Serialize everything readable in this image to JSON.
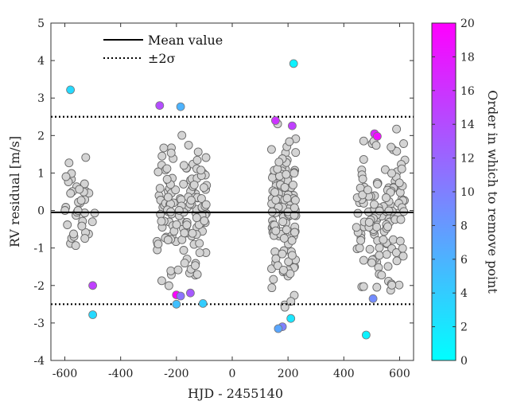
{
  "chart_data": {
    "type": "scatter",
    "title": "",
    "xlabel": "HJD - 2455140",
    "ylabel": "RV residual [m/s]",
    "xlim": [
      -650,
      650
    ],
    "ylim": [
      -4,
      5
    ],
    "xticks": [
      -600,
      -400,
      -200,
      0,
      200,
      400,
      600
    ],
    "yticks": [
      -4,
      -3,
      -2,
      -1,
      0,
      1,
      2,
      3,
      4,
      5
    ],
    "mean_value": -0.05,
    "sigma_lines": [
      2.5,
      -2.5
    ],
    "legend": {
      "placement": "top-left",
      "entries": [
        {
          "label": "Mean value",
          "style": "solid"
        },
        {
          "label": "±2σ",
          "style": "dotted"
        }
      ]
    },
    "colorbar": {
      "label": "Order in which to remove point",
      "min": 0,
      "max": 20,
      "ticks": [
        0,
        2,
        4,
        6,
        8,
        10,
        12,
        14,
        16,
        18,
        20
      ],
      "color_low": "#00ffff",
      "color_high": "#ff00ff"
    },
    "gray_color": "#d4d4d4",
    "clusters": [
      {
        "name": "cluster-1",
        "x_range": [
          -610,
          -490
        ],
        "count": 40,
        "y_range": [
          -1.7,
          1.7
        ]
      },
      {
        "name": "cluster-2",
        "x_range": [
          -270,
          -90
        ],
        "count": 140,
        "y_range": [
          -2.3,
          2.3
        ]
      },
      {
        "name": "cluster-3",
        "x_range": [
          140,
          230
        ],
        "count": 130,
        "y_range": [
          -2.6,
          2.8
        ]
      },
      {
        "name": "cluster-4",
        "x_range": [
          440,
          620
        ],
        "count": 130,
        "y_range": [
          -2.7,
          2.6
        ]
      }
    ],
    "removed_points": [
      {
        "x": -580,
        "y": 3.22,
        "order": 3
      },
      {
        "x": -500,
        "y": -2.0,
        "order": 15
      },
      {
        "x": -500,
        "y": -2.78,
        "order": 3
      },
      {
        "x": -260,
        "y": 2.8,
        "order": 14
      },
      {
        "x": -185,
        "y": 2.77,
        "order": 6
      },
      {
        "x": -200,
        "y": -2.25,
        "order": 20
      },
      {
        "x": -185,
        "y": -2.28,
        "order": 11
      },
      {
        "x": -150,
        "y": -2.2,
        "order": 13
      },
      {
        "x": -200,
        "y": -2.5,
        "order": 5
      },
      {
        "x": -105,
        "y": -2.48,
        "order": 4
      },
      {
        "x": 155,
        "y": 2.4,
        "order": 16
      },
      {
        "x": 215,
        "y": 2.26,
        "order": 15
      },
      {
        "x": 220,
        "y": 3.92,
        "order": 1
      },
      {
        "x": 210,
        "y": -2.88,
        "order": 2
      },
      {
        "x": 180,
        "y": -3.1,
        "order": 10
      },
      {
        "x": 165,
        "y": -3.15,
        "order": 7
      },
      {
        "x": 510,
        "y": 2.05,
        "order": 17
      },
      {
        "x": 520,
        "y": 1.98,
        "order": 19
      },
      {
        "x": 480,
        "y": -3.32,
        "order": 1
      },
      {
        "x": 505,
        "y": -2.35,
        "order": 9
      }
    ]
  }
}
